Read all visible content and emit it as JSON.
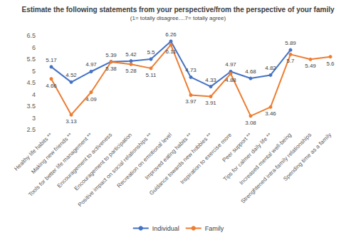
{
  "chart_data": {
    "type": "line",
    "title": "Estimate the following statements from your perspective/from the perspective of your family",
    "subtitle": "(1= totally disagree....7= totally agree)",
    "categories": [
      "Healthy life habits **",
      "Making new friends **",
      "Tools for better life management **",
      "Encouragement to activeness",
      "Encouragement to participation",
      "Positive impact on social relationships **",
      "Recreation on emotional level",
      "Improved eating habits **",
      "Guidance towards new hobbies **",
      "Inspiration to exercise more",
      "Peer support **",
      "Tips for calmer daily life **",
      "Increased mental well-being",
      "Strenghtened intra-family relationships",
      "Spending time as a family"
    ],
    "series": [
      {
        "name": "Individual",
        "color": "#4472c4",
        "marker": "circle",
        "line_style": "solid",
        "values": [
          5.17,
          4.52,
          4.97,
          5.39,
          5.42,
          5.5,
          6.26,
          4.73,
          4.33,
          4.97,
          4.68,
          4.82,
          5.89,
          null,
          null
        ]
      },
      {
        "name": "Family",
        "color": "#ed7d31",
        "marker": "circle",
        "line_style": "solid",
        "values": [
          4.66,
          3.13,
          4.09,
          5.38,
          5.28,
          5.11,
          6.11,
          3.97,
          3.91,
          4.88,
          3.08,
          3.46,
          5.7,
          5.49,
          5.6
        ]
      }
    ],
    "ylim": [
      2.5,
      6.5
    ],
    "yticks": [
      2.5,
      3,
      3.5,
      4,
      4.5,
      5,
      5.5,
      6,
      6.5
    ],
    "grid": false,
    "legend": "bottom",
    "data_labels": true
  }
}
